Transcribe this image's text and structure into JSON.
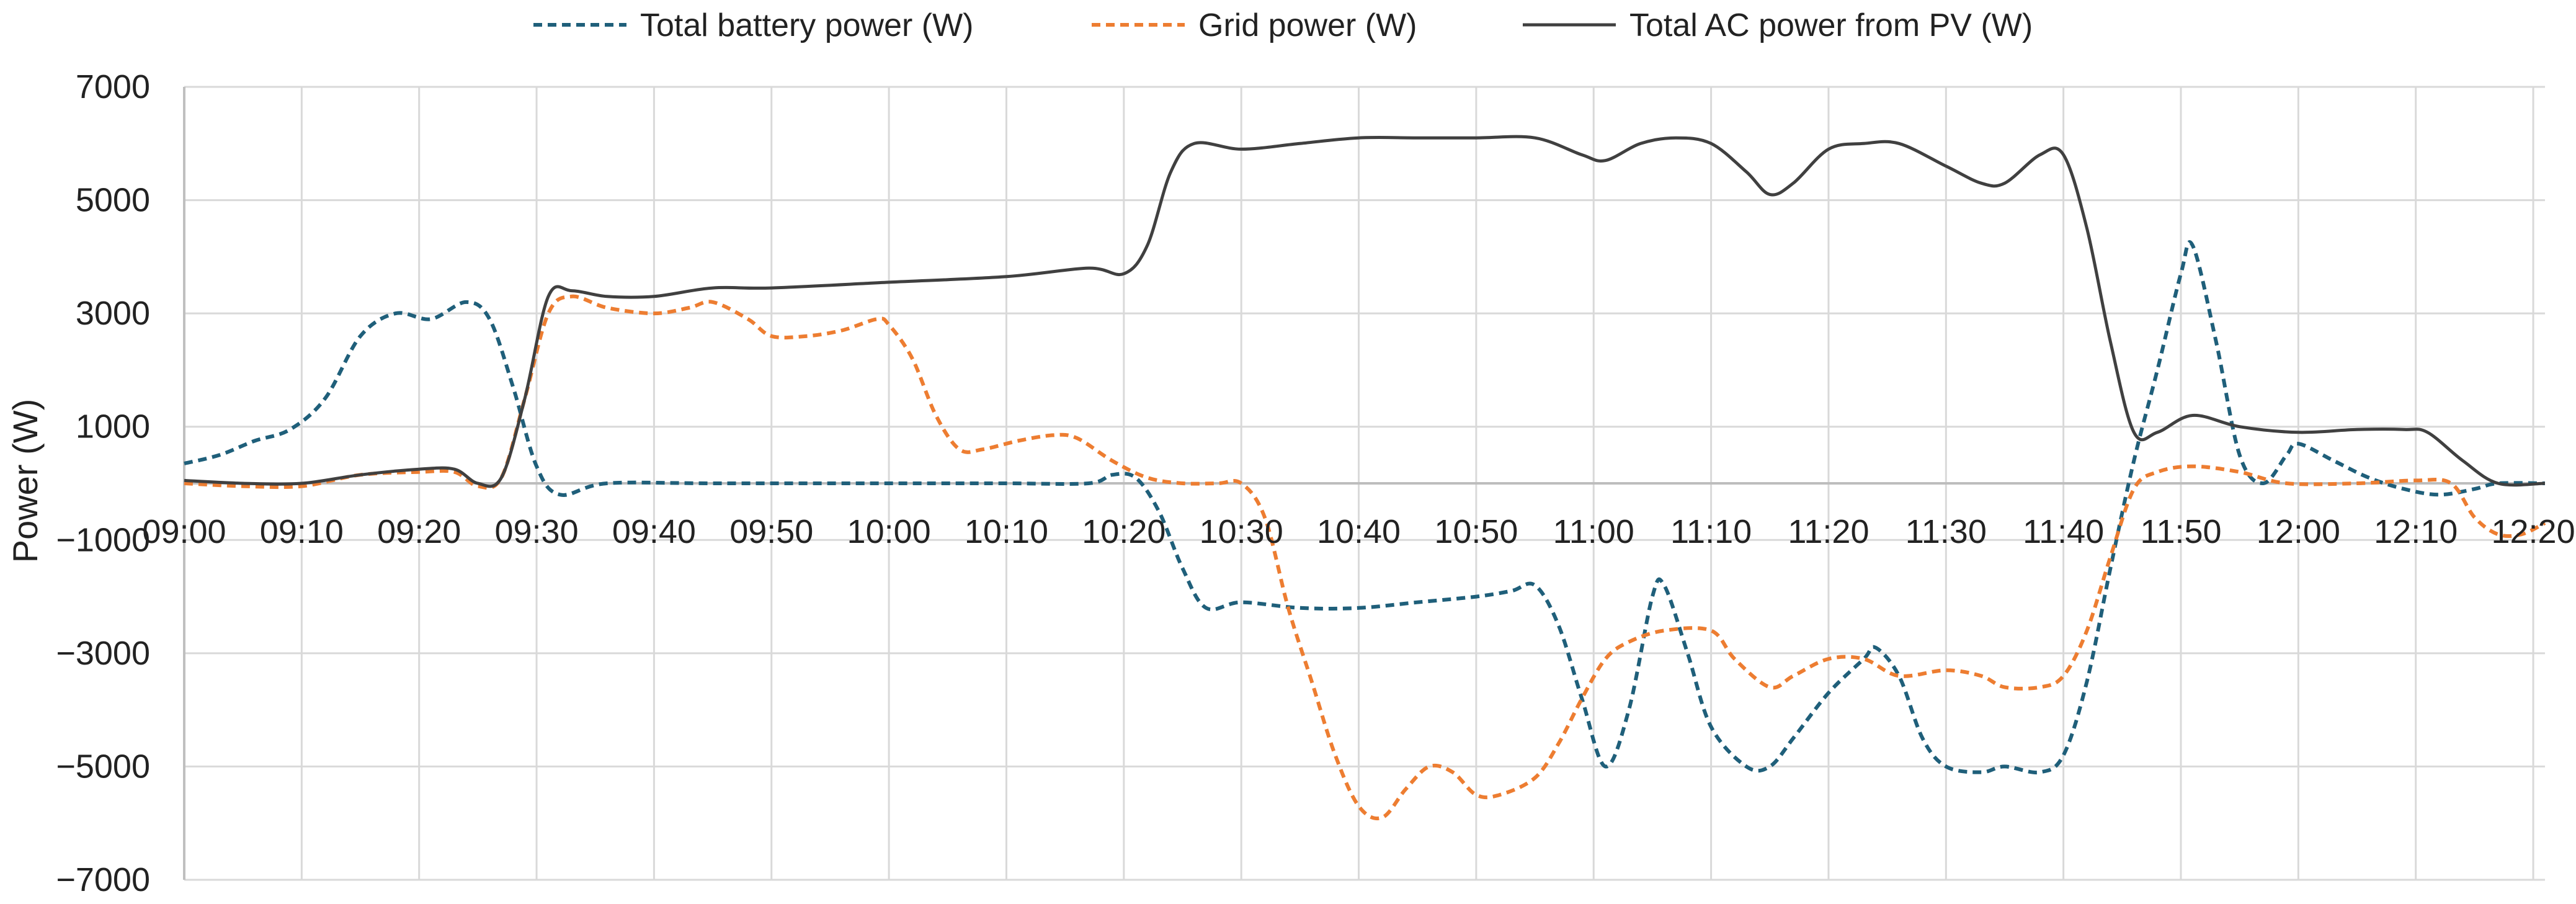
{
  "chart_data": {
    "type": "line",
    "title": "",
    "xlabel": "",
    "ylabel": "Power (W)",
    "ylim": [
      -7000,
      7000
    ],
    "yticks": [
      7000,
      5000,
      3000,
      1000,
      -1000,
      -3000,
      -5000,
      -7000
    ],
    "xlim": [
      "09:00",
      "12:21"
    ],
    "xtick_labels": [
      "09:00",
      "09:10",
      "09:20",
      "09:30",
      "09:40",
      "09:50",
      "10:00",
      "10:10",
      "10:20",
      "10:30",
      "10:40",
      "10:50",
      "11:00",
      "11:10",
      "11:20",
      "11:30",
      "11:40",
      "11:50",
      "12:00",
      "12:10",
      "12:20"
    ],
    "grid": true,
    "legend_position": "top-center",
    "series": [
      {
        "name": "Total battery power (W)",
        "color": "#1f5f7a",
        "style": "dashed",
        "points": [
          [
            "09:00",
            350
          ],
          [
            "09:03",
            500
          ],
          [
            "09:06",
            750
          ],
          [
            "09:09",
            950
          ],
          [
            "09:12",
            1500
          ],
          [
            "09:15",
            2600
          ],
          [
            "09:18",
            3000
          ],
          [
            "09:21",
            2900
          ],
          [
            "09:24",
            3200
          ],
          [
            "09:26",
            2900
          ],
          [
            "09:28",
            1700
          ],
          [
            "09:30",
            300
          ],
          [
            "09:32",
            -200
          ],
          [
            "09:36",
            0
          ],
          [
            "09:45",
            0
          ],
          [
            "10:00",
            0
          ],
          [
            "10:10",
            0
          ],
          [
            "10:17",
            0
          ],
          [
            "10:19",
            150
          ],
          [
            "10:21",
            100
          ],
          [
            "10:23",
            -500
          ],
          [
            "10:25",
            -1500
          ],
          [
            "10:27",
            -2200
          ],
          [
            "10:30",
            -2100
          ],
          [
            "10:35",
            -2200
          ],
          [
            "10:40",
            -2200
          ],
          [
            "10:45",
            -2100
          ],
          [
            "10:50",
            -2000
          ],
          [
            "10:53",
            -1900
          ],
          [
            "10:55",
            -1800
          ],
          [
            "10:57",
            -2500
          ],
          [
            "10:59",
            -3800
          ],
          [
            "11:01",
            -5000
          ],
          [
            "11:03",
            -4000
          ],
          [
            "11:05",
            -2000
          ],
          [
            "11:06",
            -1800
          ],
          [
            "11:08",
            -3000
          ],
          [
            "11:10",
            -4300
          ],
          [
            "11:13",
            -5000
          ],
          [
            "11:15",
            -5000
          ],
          [
            "11:17",
            -4500
          ],
          [
            "11:20",
            -3700
          ],
          [
            "11:23",
            -3100
          ],
          [
            "11:24",
            -2900
          ],
          [
            "11:26",
            -3400
          ],
          [
            "11:28",
            -4500
          ],
          [
            "11:30",
            -5000
          ],
          [
            "11:33",
            -5100
          ],
          [
            "11:35",
            -5000
          ],
          [
            "11:38",
            -5100
          ],
          [
            "11:40",
            -4800
          ],
          [
            "11:42",
            -3500
          ],
          [
            "11:44",
            -1500
          ],
          [
            "11:46",
            400
          ],
          [
            "11:48",
            2000
          ],
          [
            "11:50",
            3700
          ],
          [
            "11:51",
            4200
          ],
          [
            "11:53",
            2500
          ],
          [
            "11:55",
            500
          ],
          [
            "11:57",
            0
          ],
          [
            "11:59",
            500
          ],
          [
            "12:00",
            700
          ],
          [
            "12:03",
            400
          ],
          [
            "12:06",
            100
          ],
          [
            "12:09",
            -100
          ],
          [
            "12:12",
            -200
          ],
          [
            "12:15",
            -100
          ],
          [
            "12:17",
            0
          ],
          [
            "12:21",
            0
          ]
        ]
      },
      {
        "name": "Grid power (W)",
        "color": "#ed7d31",
        "style": "dashed",
        "points": [
          [
            "09:00",
            0
          ],
          [
            "09:05",
            -50
          ],
          [
            "09:10",
            -50
          ],
          [
            "09:15",
            150
          ],
          [
            "09:20",
            200
          ],
          [
            "09:23",
            200
          ],
          [
            "09:25",
            -50
          ],
          [
            "09:27",
            100
          ],
          [
            "09:29",
            1500
          ],
          [
            "09:31",
            3000
          ],
          [
            "09:33",
            3300
          ],
          [
            "09:36",
            3100
          ],
          [
            "09:40",
            3000
          ],
          [
            "09:43",
            3100
          ],
          [
            "09:45",
            3200
          ],
          [
            "09:48",
            2900
          ],
          [
            "09:50",
            2600
          ],
          [
            "09:53",
            2600
          ],
          [
            "09:56",
            2700
          ],
          [
            "09:59",
            2900
          ],
          [
            "10:00",
            2800
          ],
          [
            "10:02",
            2200
          ],
          [
            "10:04",
            1200
          ],
          [
            "10:06",
            600
          ],
          [
            "10:08",
            600
          ],
          [
            "10:11",
            750
          ],
          [
            "10:14",
            850
          ],
          [
            "10:16",
            800
          ],
          [
            "10:19",
            400
          ],
          [
            "10:22",
            100
          ],
          [
            "10:25",
            0
          ],
          [
            "10:28",
            0
          ],
          [
            "10:30",
            0
          ],
          [
            "10:32",
            -600
          ],
          [
            "10:34",
            -2200
          ],
          [
            "10:36",
            -3500
          ],
          [
            "10:38",
            -4800
          ],
          [
            "10:40",
            -5700
          ],
          [
            "10:42",
            -5900
          ],
          [
            "10:44",
            -5400
          ],
          [
            "10:46",
            -5000
          ],
          [
            "10:48",
            -5100
          ],
          [
            "10:50",
            -5500
          ],
          [
            "10:52",
            -5500
          ],
          [
            "10:55",
            -5200
          ],
          [
            "10:57",
            -4600
          ],
          [
            "10:59",
            -3800
          ],
          [
            "11:01",
            -3100
          ],
          [
            "11:03",
            -2800
          ],
          [
            "11:06",
            -2600
          ],
          [
            "11:10",
            -2600
          ],
          [
            "11:12",
            -3100
          ],
          [
            "11:15",
            -3600
          ],
          [
            "11:17",
            -3400
          ],
          [
            "11:20",
            -3100
          ],
          [
            "11:23",
            -3100
          ],
          [
            "11:26",
            -3400
          ],
          [
            "11:30",
            -3300
          ],
          [
            "11:33",
            -3400
          ],
          [
            "11:35",
            -3600
          ],
          [
            "11:38",
            -3600
          ],
          [
            "11:40",
            -3400
          ],
          [
            "11:42",
            -2600
          ],
          [
            "11:44",
            -1300
          ],
          [
            "11:46",
            -100
          ],
          [
            "11:48",
            200
          ],
          [
            "11:51",
            300
          ],
          [
            "11:55",
            200
          ],
          [
            "11:59",
            0
          ],
          [
            "12:05",
            0
          ],
          [
            "12:10",
            50
          ],
          [
            "12:13",
            0
          ],
          [
            "12:15",
            -600
          ],
          [
            "12:17",
            -900
          ],
          [
            "12:19",
            -900
          ],
          [
            "12:21",
            -700
          ]
        ]
      },
      {
        "name": "Total AC power from PV (W)",
        "color": "#404040",
        "style": "solid",
        "points": [
          [
            "09:00",
            50
          ],
          [
            "09:05",
            0
          ],
          [
            "09:10",
            0
          ],
          [
            "09:15",
            150
          ],
          [
            "09:20",
            250
          ],
          [
            "09:23",
            250
          ],
          [
            "09:25",
            0
          ],
          [
            "09:27",
            100
          ],
          [
            "09:29",
            1500
          ],
          [
            "09:31",
            3300
          ],
          [
            "09:33",
            3400
          ],
          [
            "09:36",
            3300
          ],
          [
            "09:40",
            3300
          ],
          [
            "09:45",
            3450
          ],
          [
            "09:50",
            3450
          ],
          [
            "10:00",
            3550
          ],
          [
            "10:10",
            3650
          ],
          [
            "10:17",
            3800
          ],
          [
            "10:20",
            3700
          ],
          [
            "10:22",
            4200
          ],
          [
            "10:24",
            5500
          ],
          [
            "10:26",
            6000
          ],
          [
            "10:30",
            5900
          ],
          [
            "10:35",
            6000
          ],
          [
            "10:40",
            6100
          ],
          [
            "10:45",
            6100
          ],
          [
            "10:50",
            6100
          ],
          [
            "10:55",
            6100
          ],
          [
            "10:59",
            5800
          ],
          [
            "11:01",
            5700
          ],
          [
            "11:04",
            6000
          ],
          [
            "11:07",
            6100
          ],
          [
            "11:10",
            6000
          ],
          [
            "11:13",
            5500
          ],
          [
            "11:15",
            5100
          ],
          [
            "11:17",
            5300
          ],
          [
            "11:20",
            5900
          ],
          [
            "11:23",
            6000
          ],
          [
            "11:26",
            6000
          ],
          [
            "11:30",
            5600
          ],
          [
            "11:33",
            5300
          ],
          [
            "11:35",
            5300
          ],
          [
            "11:38",
            5800
          ],
          [
            "11:40",
            5800
          ],
          [
            "11:42",
            4500
          ],
          [
            "11:44",
            2500
          ],
          [
            "11:46",
            900
          ],
          [
            "11:48",
            900
          ],
          [
            "11:51",
            1200
          ],
          [
            "11:55",
            1000
          ],
          [
            "12:00",
            900
          ],
          [
            "12:05",
            950
          ],
          [
            "12:09",
            950
          ],
          [
            "12:11",
            900
          ],
          [
            "12:14",
            400
          ],
          [
            "12:17",
            0
          ],
          [
            "12:21",
            0
          ]
        ]
      }
    ]
  }
}
